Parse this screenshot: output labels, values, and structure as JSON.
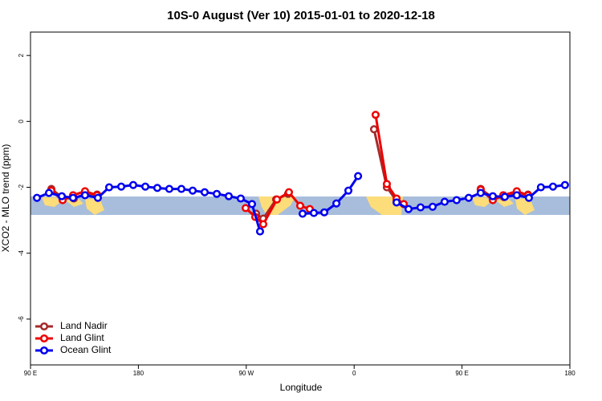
{
  "chart_data": {
    "type": "line",
    "title": "10S-0 August (Ver 10)   2015-01-01 to 2020-12-18",
    "xlabel": "Longitude",
    "ylabel": "XCO2 - MLO trend (ppm)",
    "xlim": [
      90,
      540
    ],
    "ylim": [
      -7.39,
      2.71
    ],
    "xticks": [
      {
        "value": 90,
        "label": "90 E"
      },
      180,
      {
        "value": 270,
        "label": "90 W"
      },
      {
        "value": 360,
        "label": "0"
      },
      {
        "value": 450,
        "label": "90 E"
      },
      {
        "value": 540,
        "label": "180"
      }
    ],
    "yticks": [
      2,
      0,
      -2,
      -4,
      -6
    ],
    "legend": "bottom-left",
    "series": [
      {
        "name": "Land Nadir",
        "color": "#a52a2a",
        "x": [
          107.4,
          116.8,
          126.2,
          135.5,
          145.6,
          null,
          278.2,
          284.2,
          294.9,
          304.9,
          null,
          376.6,
          387.3,
          395.4,
          null,
          465.6,
          475.7,
          485.0,
          495.1,
          505.1
        ],
        "values": [
          -2.05,
          -2.32,
          -2.34,
          -2.2,
          -2.22,
          null,
          -2.8,
          -2.95,
          -2.37,
          -2.2,
          null,
          -0.24,
          -2.0,
          -2.41,
          null,
          -2.05,
          -2.32,
          -2.3,
          -2.2,
          -2.22
        ]
      },
      {
        "name": "Land Glint",
        "color": "#ee0000",
        "x": [
          107.4,
          116.8,
          125.5,
          135.5,
          145.6,
          null,
          269.5,
          277.5,
          284.2,
          295.6,
          305.6,
          315.0,
          323.0,
          null,
          377.9,
          387.3,
          395.4,
          401.4,
          null,
          465.6,
          475.7,
          484.4,
          495.7,
          505.1
        ],
        "values": [
          -2.1,
          -2.39,
          -2.24,
          -2.12,
          -2.24,
          null,
          -2.63,
          -2.9,
          -3.12,
          -2.37,
          -2.15,
          -2.56,
          -2.66,
          null,
          0.2,
          -1.9,
          -2.34,
          -2.51,
          null,
          -2.07,
          -2.39,
          -2.24,
          -2.12,
          -2.24
        ]
      },
      {
        "name": "Ocean Glint",
        "color": "#0000ee",
        "x": [
          95.4,
          105.4,
          116.1,
          125.5,
          135.5,
          146.2,
          155.6,
          165.7,
          175.7,
          185.8,
          195.8,
          205.8,
          215.9,
          225.3,
          235.3,
          245.4,
          255.4,
          265.4,
          274.8,
          281.5,
          null,
          317.0,
          326.4,
          335.1,
          345.2,
          355.2,
          363.3,
          null,
          395.4,
          405.4,
          415.4,
          425.5,
          435.5,
          445.5,
          455.6,
          465.6,
          475.7,
          485.7,
          495.7,
          505.8,
          515.8,
          525.9,
          535.9
        ],
        "values": [
          -2.32,
          -2.17,
          -2.27,
          -2.32,
          -2.24,
          -2.32,
          -2.0,
          -1.98,
          -1.93,
          -1.98,
          -2.02,
          -2.05,
          -2.05,
          -2.1,
          -2.15,
          -2.2,
          -2.27,
          -2.34,
          -2.51,
          -3.34,
          null,
          -2.8,
          -2.78,
          -2.76,
          -2.49,
          -2.1,
          -1.66,
          null,
          -2.46,
          -2.66,
          -2.61,
          -2.59,
          -2.44,
          -2.39,
          -2.32,
          -2.17,
          -2.27,
          -2.29,
          -2.24,
          -2.32,
          -2.0,
          -1.98,
          -1.93
        ]
      }
    ]
  }
}
